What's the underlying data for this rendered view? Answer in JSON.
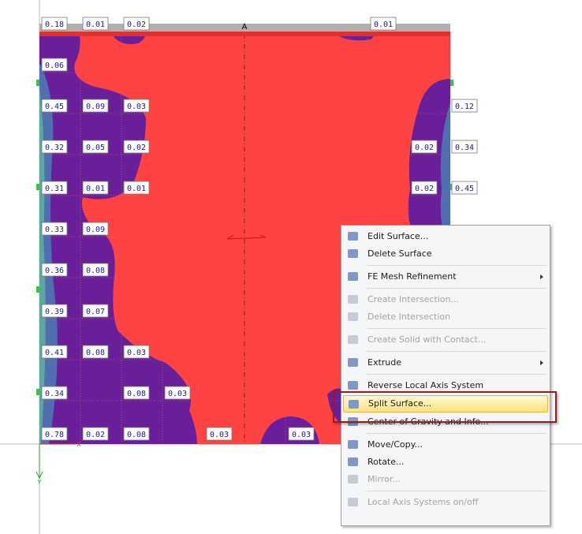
{
  "surface": {
    "axis_name": "A",
    "axis_labels": {
      "x": "X",
      "y": "Y"
    },
    "labels": [
      "0.18",
      "0.01",
      "0.02",
      "0.01",
      "0.06",
      "0.45",
      "0.09",
      "0.03",
      "0.12",
      "0.32",
      "0.05",
      "0.02",
      "0.02",
      "0.34",
      "0.31",
      "0.01",
      "0.01",
      "0.02",
      "0.45",
      "0.33",
      "0.09",
      "0.36",
      "0.08",
      "0.39",
      "0.07",
      "0.41",
      "0.08",
      "0.03",
      "0.34",
      "0.08",
      "0.03",
      "0.78",
      "0.02",
      "0.08",
      "0.03",
      "0.03"
    ]
  },
  "menu": {
    "groups": [
      [
        {
          "label": "Edit Surface..."
        },
        {
          "label": "Delete Surface"
        }
      ],
      [
        {
          "label": "FE Mesh Refinement",
          "submenu": true
        }
      ],
      [
        {
          "label": "Create Intersection...",
          "disabled": true
        },
        {
          "label": "Delete Intersection",
          "disabled": true
        }
      ],
      [
        {
          "label": "Create Solid with Contact...",
          "disabled": true
        }
      ],
      [
        {
          "label": "Extrude",
          "submenu": true
        }
      ],
      [
        {
          "label": "Reverse Local Axis System"
        },
        {
          "label": "Split Surface...",
          "highlighted": true
        },
        {
          "label": "Center of Gravity and Info..."
        }
      ],
      [
        {
          "label": "Move/Copy..."
        },
        {
          "label": "Rotate..."
        },
        {
          "label": "Mirror...",
          "disabled": true
        }
      ],
      [
        {
          "label": "Local Axis Systems on/off",
          "disabled": true
        }
      ]
    ]
  }
}
